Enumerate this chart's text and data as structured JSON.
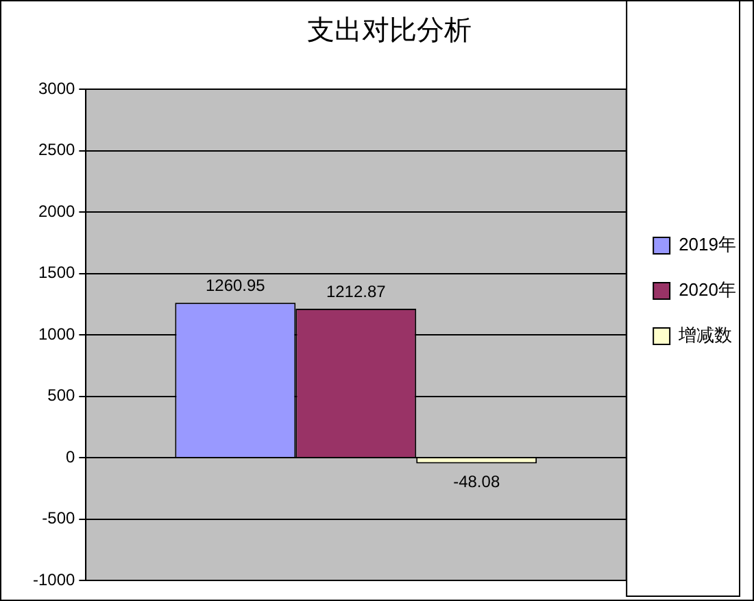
{
  "chart_data": {
    "type": "bar",
    "title": "支出对比分析",
    "categories": [
      null
    ],
    "series": [
      {
        "name": "2019年",
        "color": "#9999ff",
        "values": [
          1260.95
        ]
      },
      {
        "name": "2020年",
        "color": "#993366",
        "values": [
          1212.87
        ]
      },
      {
        "name": "增减数",
        "color": "#ffffcc",
        "values": [
          -48.08
        ]
      }
    ],
    "ylim": [
      -1000,
      3000
    ],
    "yticks": [
      -1000,
      -500,
      0,
      500,
      1000,
      1500,
      2000,
      2500,
      3000
    ],
    "grid": "y",
    "legend": "right",
    "data_labels": true
  }
}
